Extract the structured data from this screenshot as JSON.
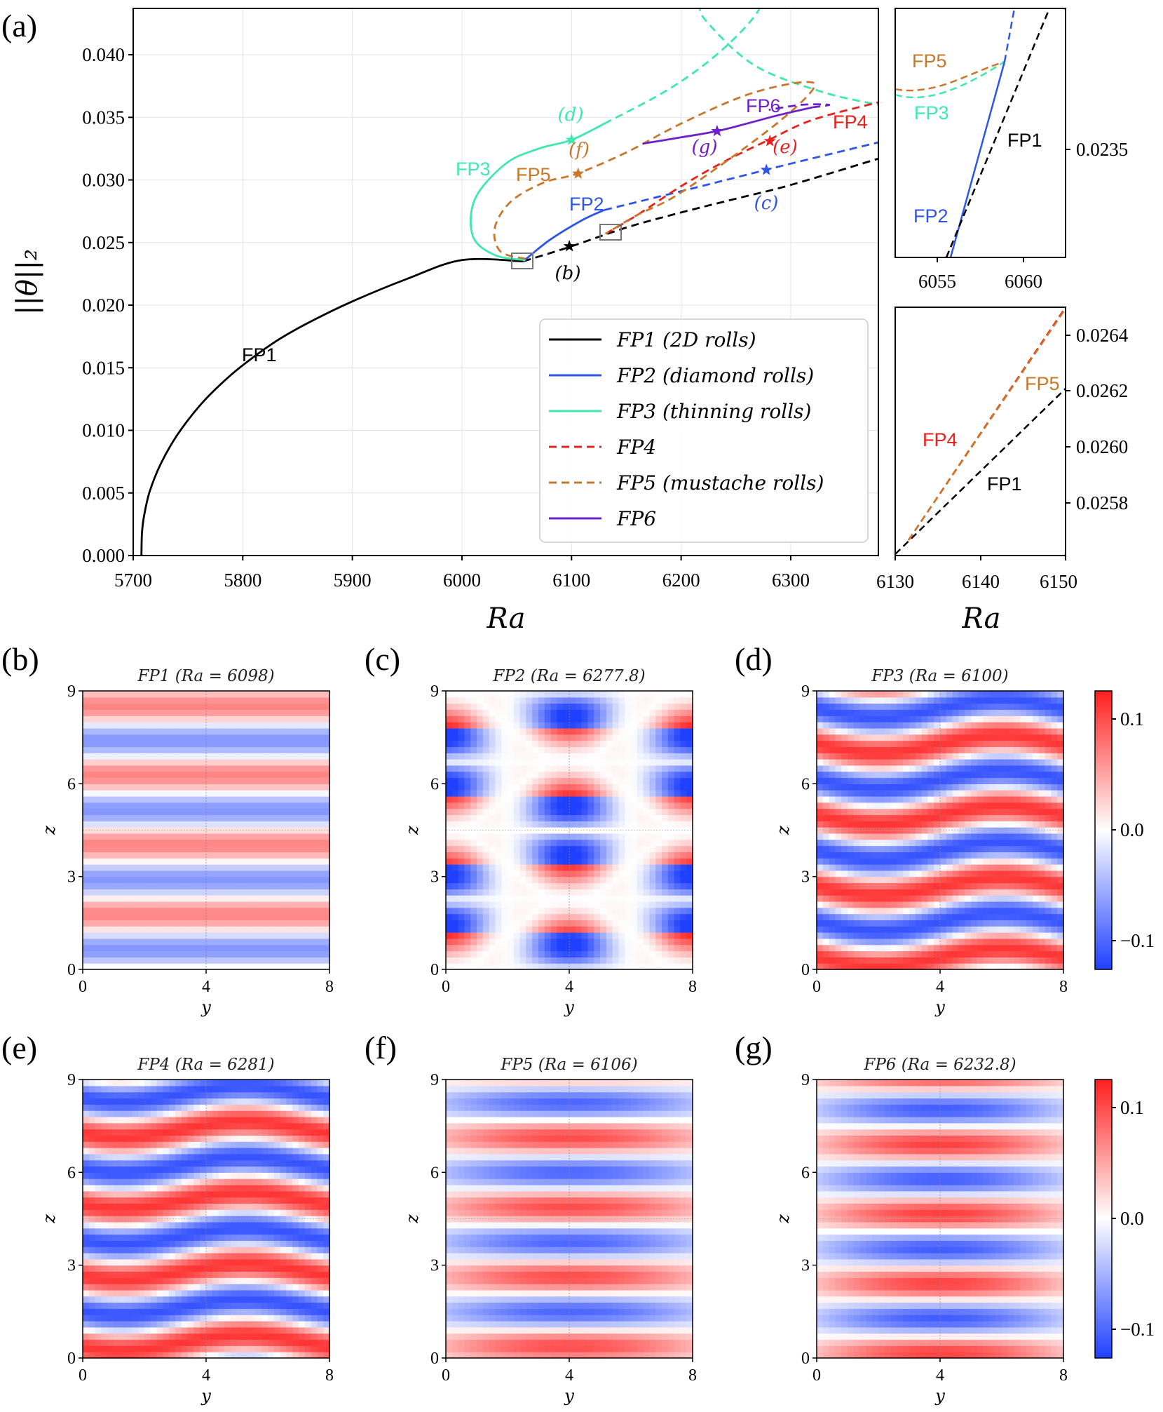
{
  "chart_data": [
    {
      "panel": "(a)",
      "type": "line",
      "xlabel": "Ra",
      "ylabel": "||θ||₂",
      "xlim": [
        5700,
        6380
      ],
      "ylim": [
        0.0,
        0.0437
      ],
      "xticks": [
        "5700",
        "5800",
        "5900",
        "6000",
        "6100",
        "6200",
        "6300"
      ],
      "yticks": [
        "0.000",
        "0.005",
        "0.010",
        "0.015",
        "0.020",
        "0.025",
        "0.030",
        "0.035",
        "0.040"
      ],
      "grid": true,
      "legend_position": "lower-right",
      "legend": [
        {
          "label": "FP1 (2D rolls)",
          "color": "#000000",
          "dash": "solid"
        },
        {
          "label": "FP2 (diamond rolls)",
          "color": "#2e55e8",
          "dash": "solid"
        },
        {
          "label": "FP3 (thinning rolls)",
          "color": "#3fe8ad",
          "dash": "solid"
        },
        {
          "label": "FP4",
          "color": "#e8211d",
          "dash": "dashed"
        },
        {
          "label": "FP5 (mustache rolls)",
          "color": "#c9772a",
          "dash": "dashed"
        },
        {
          "label": "FP6",
          "color": "#6d21c9",
          "dash": "solid"
        }
      ],
      "series": [
        {
          "name": "FP1",
          "color": "#000000",
          "x": [
            5707.5,
            5708,
            5710,
            5715,
            5725,
            5740,
            5760,
            5780,
            5800,
            5830,
            5860,
            5900,
            5950,
            6000,
            6056
          ],
          "y": [
            0.0,
            0.0018,
            0.0032,
            0.0051,
            0.0073,
            0.0096,
            0.0119,
            0.0137,
            0.0152,
            0.0171,
            0.0186,
            0.0203,
            0.0221,
            0.0236,
            0.0235
          ],
          "dashed_from": 6056,
          "x_dashed": [
            6056,
            6100,
            6150,
            6200,
            6250,
            6300,
            6380
          ],
          "y_dashed": [
            0.0235,
            0.0247,
            0.0262,
            0.0274,
            0.0285,
            0.0296,
            0.0317
          ]
        },
        {
          "name": "FP2",
          "color": "#2e55e8",
          "x": [
            6056,
            6080,
            6110,
            6130
          ],
          "y": [
            0.0235,
            0.0252,
            0.0268,
            0.0276
          ],
          "x_dashed": [
            6130,
            6200,
            6250,
            6300,
            6380
          ],
          "y_dashed": [
            0.0276,
            0.0291,
            0.0302,
            0.0313,
            0.033
          ]
        },
        {
          "name": "FP3",
          "color": "#3fe8ad",
          "x": [
            6058,
            6030,
            6010,
            6012,
            6040,
            6070,
            6100,
            6130
          ],
          "y": [
            0.0236,
            0.024,
            0.0255,
            0.0285,
            0.0313,
            0.0325,
            0.0332,
            0.0345
          ],
          "x_dashed": [
            6130,
            6180,
            6215,
            6245,
            6268,
            6272,
            6250,
            6218,
            6230,
            6270,
            6330,
            6380
          ],
          "y_dashed": [
            0.0345,
            0.0368,
            0.0388,
            0.041,
            0.0432,
            0.0445,
            0.0458,
            0.044,
            0.042,
            0.039,
            0.037,
            0.036
          ]
        },
        {
          "name": "FP4",
          "color": "#e8211d",
          "x_dashed": [
            6131,
            6160,
            6200,
            6240,
            6280,
            6320,
            6380
          ],
          "y_dashed": [
            0.0257,
            0.0272,
            0.0295,
            0.0315,
            0.0332,
            0.0348,
            0.0362
          ]
        },
        {
          "name": "FP5",
          "color": "#c9772a",
          "x_dashed": [
            6058,
            6035,
            6030,
            6045,
            6075,
            6105,
            6150,
            6200,
            6260,
            6310,
            6320,
            6280,
            6200,
            6160,
            6131
          ],
          "y_dashed": [
            0.0237,
            0.0243,
            0.0262,
            0.0283,
            0.0298,
            0.0305,
            0.0322,
            0.0345,
            0.0368,
            0.0378,
            0.0372,
            0.034,
            0.029,
            0.0272,
            0.0257
          ]
        },
        {
          "name": "FP6",
          "color": "#6d21c9",
          "x": [
            6165,
            6200,
            6232.8,
            6260,
            6290,
            6320
          ],
          "y": [
            0.0329,
            0.0334,
            0.0339,
            0.0345,
            0.0352,
            0.0358
          ],
          "x_dashed": [
            6320,
            6335,
            6310,
            6280
          ],
          "y_dashed": [
            0.0358,
            0.036,
            0.036,
            0.0356
          ]
        }
      ],
      "markers": [
        {
          "label": "(b)",
          "x": 6098,
          "y": 0.0247,
          "color": "#000000"
        },
        {
          "label": "(c)",
          "x": 6277.8,
          "y": 0.0308,
          "color": "#2e55e8"
        },
        {
          "label": "(d)",
          "x": 6100,
          "y": 0.0332,
          "color": "#3fe8ad"
        },
        {
          "label": "(e)",
          "x": 6281,
          "y": 0.0331,
          "color": "#e8211d"
        },
        {
          "label": "(f)",
          "x": 6106,
          "y": 0.0305,
          "color": "#c9772a"
        },
        {
          "label": "(g)",
          "x": 6232.8,
          "y": 0.0339,
          "color": "#6d21c9"
        }
      ],
      "annotations": [
        {
          "text": "FP1",
          "color": "#000000"
        },
        {
          "text": "FP2",
          "color": "#2e55e8"
        },
        {
          "text": "FP3",
          "color": "#3fe8ad"
        },
        {
          "text": "FP4",
          "color": "#e8211d"
        },
        {
          "text": "FP5",
          "color": "#c9772a"
        },
        {
          "text": "FP6",
          "color": "#6d21c9"
        }
      ]
    },
    {
      "panel": "inset-top",
      "type": "line",
      "xlim": [
        6053,
        6062
      ],
      "xticks": [
        "6055",
        "6060"
      ],
      "yticks": [
        "0.0235"
      ],
      "labels": [
        "FP5",
        "FP3",
        "FP1",
        "FP2"
      ]
    },
    {
      "panel": "inset-bottom",
      "type": "line",
      "xlim": [
        6130,
        6150
      ],
      "xlabel": "Ra",
      "xticks": [
        "6130",
        "6140",
        "6150"
      ],
      "yticks": [
        "0.0258",
        "0.0260",
        "0.0262",
        "0.0264"
      ],
      "labels": [
        "FP5",
        "FP4",
        "FP1"
      ]
    },
    {
      "type": "heatmap",
      "xlabel": "y",
      "ylabel": "z",
      "xticks": [
        "0",
        "4",
        "8"
      ],
      "yticks": [
        "0",
        "3",
        "6",
        "9"
      ],
      "colorbar_ticks": [
        "0.1",
        "0.0",
        "−0.1"
      ],
      "panels": [
        {
          "label": "(b)",
          "title": "FP1 (Ra = 6098)"
        },
        {
          "label": "(c)",
          "title": "FP2 (Ra = 6277.8)"
        },
        {
          "label": "(d)",
          "title": "FP3 (Ra = 6100)"
        },
        {
          "label": "(e)",
          "title": "FP4 (Ra = 6281)"
        },
        {
          "label": "(f)",
          "title": "FP5 (Ra = 6106)"
        },
        {
          "label": "(g)",
          "title": "FP6 (Ra = 6232.8)"
        }
      ]
    }
  ],
  "colors": {
    "positive": "#ff1f1f",
    "negative": "#2040ff",
    "zero": "#ffffff"
  }
}
